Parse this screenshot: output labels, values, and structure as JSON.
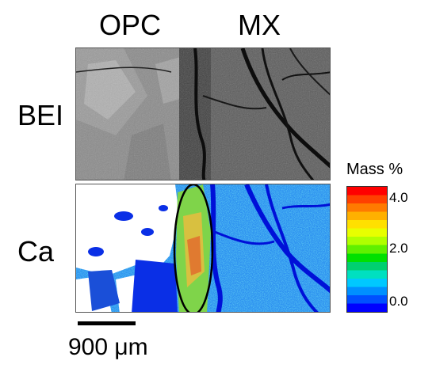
{
  "labels": {
    "opc": "OPC",
    "mx": "MX",
    "bei": "BEI",
    "ca": "Ca"
  },
  "legend": {
    "title": "Mass %",
    "ticks": [
      "4.0",
      "2.0",
      "0.0"
    ],
    "colors": [
      "#ff0000",
      "#ff4000",
      "#ff7a00",
      "#ffb000",
      "#ffe000",
      "#e8ff00",
      "#b0ff00",
      "#60f000",
      "#00e000",
      "#00d070",
      "#00e0c0",
      "#00c8ff",
      "#0090ff",
      "#0050ff",
      "#0000ff"
    ]
  },
  "scale": {
    "label": "900 μm"
  }
}
